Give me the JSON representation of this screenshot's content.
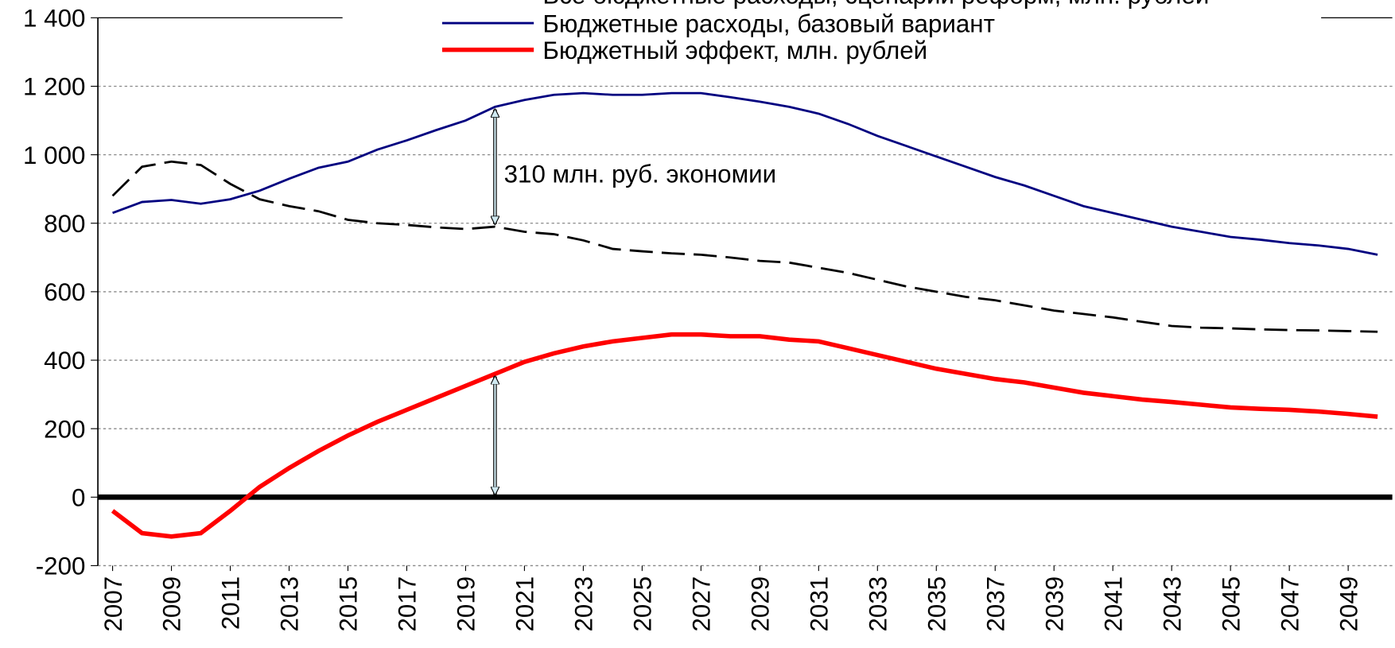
{
  "chart_data": {
    "type": "line",
    "annotations": [
      "310 млн. руб. экономии"
    ],
    "x": [
      2007,
      2008,
      2009,
      2010,
      2011,
      2012,
      2013,
      2014,
      2015,
      2016,
      2017,
      2018,
      2019,
      2020,
      2021,
      2022,
      2023,
      2024,
      2025,
      2026,
      2027,
      2028,
      2029,
      2030,
      2031,
      2032,
      2033,
      2034,
      2035,
      2036,
      2037,
      2038,
      2039,
      2040,
      2041,
      2042,
      2043,
      2044,
      2045,
      2046,
      2047,
      2048,
      2049,
      2050
    ],
    "xlim": [
      2006.5,
      2050.5
    ],
    "xticks": [
      2007,
      2009,
      2011,
      2013,
      2015,
      2017,
      2019,
      2021,
      2023,
      2025,
      2027,
      2029,
      2031,
      2033,
      2035,
      2037,
      2039,
      2041,
      2043,
      2045,
      2047,
      2049
    ],
    "ylim": [
      -200,
      1400
    ],
    "yticks": [
      -200,
      0,
      200,
      400,
      600,
      800,
      {
        "value": 1000,
        "label": "1 000"
      },
      {
        "value": 1200,
        "label": "1 200"
      },
      {
        "value": 1400,
        "label": "1 400"
      }
    ],
    "grid": true,
    "series": [
      {
        "name": "Все бюджетные расходы, сценарий реформ, млн. рублей",
        "color": "#000000",
        "dash": true,
        "values": [
          880,
          965,
          980,
          970,
          915,
          870,
          850,
          835,
          810,
          800,
          795,
          788,
          783,
          790,
          775,
          768,
          750,
          725,
          718,
          712,
          708,
          700,
          690,
          685,
          670,
          655,
          635,
          615,
          600,
          585,
          575,
          560,
          545,
          535,
          525,
          512,
          500,
          495,
          493,
          490,
          488,
          487,
          485,
          483
        ]
      },
      {
        "name": "Бюджетные расходы, базовый вариант",
        "color": "#000080",
        "values": [
          830,
          862,
          868,
          857,
          870,
          895,
          930,
          962,
          980,
          1015,
          1042,
          1072,
          1100,
          1140,
          1160,
          1175,
          1180,
          1175,
          1175,
          1180,
          1180,
          1168,
          1155,
          1140,
          1120,
          1090,
          1055,
          1025,
          995,
          965,
          935,
          910,
          880,
          850,
          830,
          810,
          790,
          775,
          760,
          752,
          742,
          735,
          725,
          708
        ]
      },
      {
        "name": "Бюджетный эффект, млн. рублей",
        "color": "#ff0000",
        "values": [
          -40,
          -105,
          -115,
          -105,
          -40,
          30,
          85,
          135,
          180,
          220,
          255,
          290,
          325,
          360,
          395,
          420,
          440,
          455,
          465,
          475,
          475,
          470,
          470,
          460,
          455,
          435,
          415,
          395,
          375,
          360,
          345,
          335,
          320,
          305,
          295,
          285,
          278,
          270,
          262,
          258,
          255,
          250,
          243,
          235
        ]
      }
    ]
  }
}
